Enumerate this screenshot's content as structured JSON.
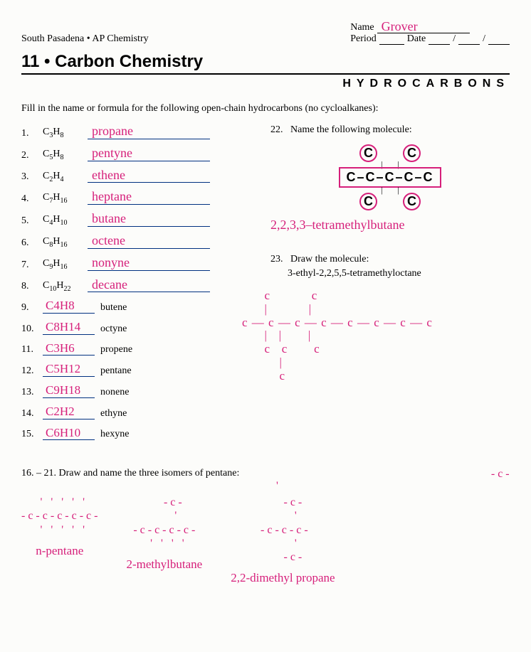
{
  "header": {
    "school": "South Pasadena • AP Chemistry",
    "name_label": "Name",
    "name_written": "Grover",
    "period_label": "Period",
    "date_label": "Date",
    "date_sep": "/",
    "chapter": "11 • Carbon Chemistry",
    "subtitle": "HYDROCARBONS"
  },
  "instructions": "Fill in the name or formula for the following open-chain hydrocarbons (no cycloalkanes):",
  "questions_given_formula": [
    {
      "n": "1.",
      "formula_html": "C<sub>3</sub>H<sub>8</sub>",
      "answer": "propane"
    },
    {
      "n": "2.",
      "formula_html": "C<sub>5</sub>H<sub>8</sub>",
      "answer": "pentyne"
    },
    {
      "n": "3.",
      "formula_html": "C<sub>2</sub>H<sub>4</sub>",
      "answer": "ethene"
    },
    {
      "n": "4.",
      "formula_html": "C<sub>7</sub>H<sub>16</sub>",
      "answer": "heptane"
    },
    {
      "n": "5.",
      "formula_html": "C<sub>4</sub>H<sub>10</sub>",
      "answer": "butane"
    },
    {
      "n": "6.",
      "formula_html": "C<sub>8</sub>H<sub>16</sub>",
      "answer": "octene"
    },
    {
      "n": "7.",
      "formula_html": "C<sub>9</sub>H<sub>16</sub>",
      "answer": "nonyne"
    },
    {
      "n": "8.",
      "formula_html": "C<sub>10</sub>H<sub>22</sub>",
      "answer": "decane"
    }
  ],
  "questions_given_name": [
    {
      "n": "9.",
      "answer": "C4H8",
      "name": "butene"
    },
    {
      "n": "10.",
      "answer": "C8H14",
      "name": "octyne"
    },
    {
      "n": "11.",
      "answer": "C3H6",
      "name": "propene"
    },
    {
      "n": "12.",
      "answer": "C5H12",
      "name": "pentane"
    },
    {
      "n": "13.",
      "answer": "C9H18",
      "name": "nonene"
    },
    {
      "n": "14.",
      "answer": "C2H2",
      "name": "ethyne"
    },
    {
      "n": "15.",
      "answer": "C6H10",
      "name": "hexyne"
    }
  ],
  "q22": {
    "num": "22.",
    "prompt": "Name the following molecule:",
    "top_carbons": [
      "C",
      "C"
    ],
    "chain": "C–C–C–C–C",
    "bottom_carbons": [
      "C",
      "C"
    ],
    "answer": "2,2,3,3–tetramethylbutane"
  },
  "q23": {
    "num": "23.",
    "prompt": "Draw the molecule:",
    "compound": "3-ethyl-2,2,5,5-tetramethyloctane",
    "drawing": "      c           c\n      |           |\nc — c — c — c — c — c — c — c\n      |   |       |\n      c   c       c\n          |\n          c"
  },
  "isomers": {
    "header": "16. – 21.  Draw and name the three isomers of pentane:",
    "top_hint": "- c -\n  '",
    "items": [
      {
        "structure": "  '   '   '   '   '\n- c - c - c - c - c -\n  '   '   '   '   '",
        "label": "n-pentane"
      },
      {
        "structure": "      - c -\n        '\n- c - c - c - c -\n  '   '   '   '",
        "label": "2-methylbutane"
      },
      {
        "structure": "       - c -\n         '\n - c - c - c -\n         '\n       - c -",
        "label": "2,2-dimethyl\n     propane"
      }
    ]
  },
  "colors": {
    "handwriting": "#d61f7a",
    "rule_line": "#003080",
    "text": "#000000",
    "background": "#fcfcfa"
  }
}
